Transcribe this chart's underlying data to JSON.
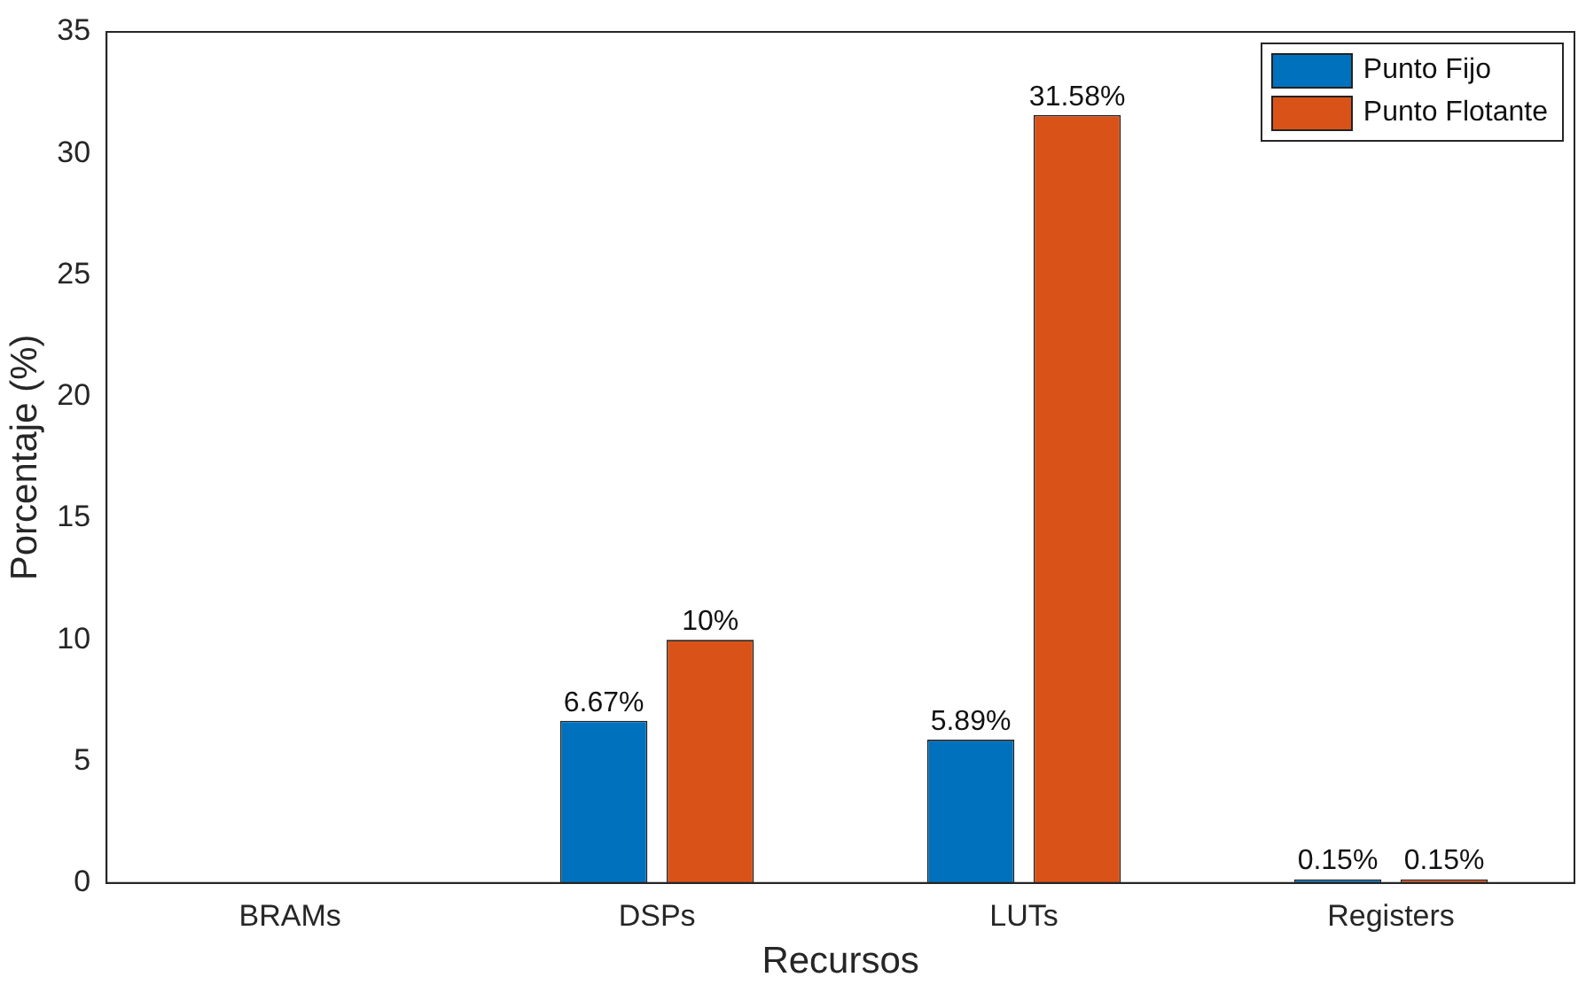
{
  "chart_data": {
    "type": "bar",
    "xlabel": "Recursos",
    "ylabel": "Porcentaje (%)",
    "categories": [
      "BRAMs",
      "DSPs",
      "LUTs",
      "Registers"
    ],
    "series": [
      {
        "name": "Punto Fijo",
        "color": "#0072bd",
        "values": [
          0,
          6.67,
          5.89,
          0.15
        ],
        "value_labels": [
          null,
          "6.67%",
          "5.89%",
          "0.15%"
        ]
      },
      {
        "name": "Punto Flotante",
        "color": "#d95319",
        "values": [
          0,
          10,
          31.58,
          0.15
        ],
        "value_labels": [
          null,
          "10%",
          "31.58%",
          "0.15%"
        ]
      }
    ],
    "ylim": [
      0,
      35
    ],
    "yticks": [
      0,
      5,
      10,
      15,
      20,
      25,
      30,
      35
    ],
    "grid": false,
    "legend": "top right"
  }
}
